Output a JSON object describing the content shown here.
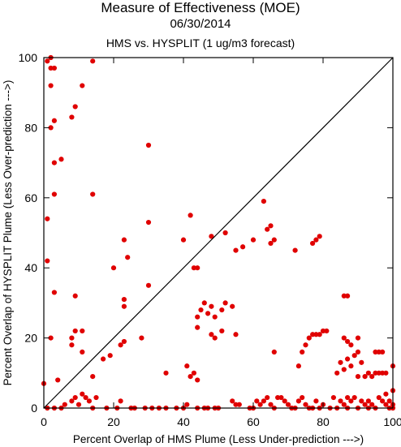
{
  "chart_data": {
    "type": "scatter",
    "title": "Measure of Effectiveness (MOE)",
    "subtitle": "06/30/2014",
    "subtitle2": "HMS vs. HYSPLIT  (1 ug/m3 forecast)",
    "xlabel": "Percent Overlap of HMS Plume (Less Under-prediction --->)",
    "ylabel": "Percent Overlap of HYSPLIT Plume (Less Over-prediction --->)",
    "xlim": [
      0,
      100
    ],
    "ylim": [
      0,
      100
    ],
    "x_ticks": [
      0,
      20,
      40,
      60,
      80,
      100
    ],
    "y_ticks": [
      0,
      20,
      40,
      60,
      80,
      100
    ],
    "grid": false,
    "reference_line": "diagonal y = x",
    "point_color": "#e00000",
    "points": [
      [
        1,
        99
      ],
      [
        2,
        97
      ],
      [
        2,
        100
      ],
      [
        3,
        97
      ],
      [
        2,
        92
      ],
      [
        11,
        92
      ],
      [
        14,
        99
      ],
      [
        8,
        83
      ],
      [
        9,
        86
      ],
      [
        3,
        82
      ],
      [
        2,
        80
      ],
      [
        30,
        75
      ],
      [
        3,
        70
      ],
      [
        5,
        71
      ],
      [
        1,
        54
      ],
      [
        3,
        61
      ],
      [
        14,
        61
      ],
      [
        42,
        55
      ],
      [
        63,
        59
      ],
      [
        65,
        52
      ],
      [
        64,
        51
      ],
      [
        66,
        48
      ],
      [
        23,
        48
      ],
      [
        24,
        43
      ],
      [
        20,
        40
      ],
      [
        30,
        53
      ],
      [
        40,
        48
      ],
      [
        48,
        49
      ],
      [
        52,
        50
      ],
      [
        1,
        42
      ],
      [
        43,
        40
      ],
      [
        44,
        40
      ],
      [
        55,
        45
      ],
      [
        57,
        46
      ],
      [
        60,
        48
      ],
      [
        72,
        45
      ],
      [
        77,
        47
      ],
      [
        78,
        48
      ],
      [
        79,
        49
      ],
      [
        65,
        47
      ],
      [
        3,
        33
      ],
      [
        9,
        32
      ],
      [
        30,
        35
      ],
      [
        23,
        31
      ],
      [
        23,
        29
      ],
      [
        44,
        26
      ],
      [
        45,
        28
      ],
      [
        46,
        30
      ],
      [
        47,
        27
      ],
      [
        48,
        29
      ],
      [
        49,
        26
      ],
      [
        51,
        28
      ],
      [
        52,
        30
      ],
      [
        54,
        29
      ],
      [
        44,
        23
      ],
      [
        48,
        21
      ],
      [
        49,
        20
      ],
      [
        51,
        22
      ],
      [
        55,
        21
      ],
      [
        73,
        12
      ],
      [
        74,
        16
      ],
      [
        75,
        18
      ],
      [
        76,
        20
      ],
      [
        77,
        21
      ],
      [
        78,
        21
      ],
      [
        79,
        21
      ],
      [
        80,
        22
      ],
      [
        81,
        22
      ],
      [
        86,
        32
      ],
      [
        87,
        32
      ],
      [
        86,
        20
      ],
      [
        87,
        19
      ],
      [
        88,
        18
      ],
      [
        90,
        20
      ],
      [
        87,
        14
      ],
      [
        88,
        12
      ],
      [
        89,
        15
      ],
      [
        90,
        16
      ],
      [
        91,
        13
      ],
      [
        85,
        13
      ],
      [
        86,
        11
      ],
      [
        84,
        10
      ],
      [
        90,
        9
      ],
      [
        92,
        9
      ],
      [
        93,
        10
      ],
      [
        94,
        9
      ],
      [
        95,
        10
      ],
      [
        96,
        10
      ],
      [
        97,
        10
      ],
      [
        98,
        10
      ],
      [
        95,
        16
      ],
      [
        96,
        16
      ],
      [
        97,
        16
      ],
      [
        100,
        12
      ],
      [
        100,
        5
      ],
      [
        98,
        4
      ],
      [
        99,
        2
      ],
      [
        2,
        20
      ],
      [
        4,
        8
      ],
      [
        8,
        18
      ],
      [
        8,
        20
      ],
      [
        9,
        22
      ],
      [
        11,
        22
      ],
      [
        11,
        16
      ],
      [
        14,
        9
      ],
      [
        17,
        14
      ],
      [
        19,
        15
      ],
      [
        22,
        18
      ],
      [
        23,
        19
      ],
      [
        28,
        20
      ],
      [
        35,
        10
      ],
      [
        41,
        12
      ],
      [
        42,
        9
      ],
      [
        43,
        10
      ],
      [
        44,
        8
      ],
      [
        66,
        16
      ],
      [
        0,
        7
      ],
      [
        1,
        0
      ],
      [
        3,
        0
      ],
      [
        5,
        0
      ],
      [
        6,
        1
      ],
      [
        8,
        2
      ],
      [
        9,
        3
      ],
      [
        10,
        1
      ],
      [
        11,
        4
      ],
      [
        12,
        3
      ],
      [
        13,
        2
      ],
      [
        14,
        0
      ],
      [
        15,
        3
      ],
      [
        18,
        0
      ],
      [
        21,
        0
      ],
      [
        22,
        2
      ],
      [
        25,
        0
      ],
      [
        26,
        0
      ],
      [
        29,
        0
      ],
      [
        31,
        0
      ],
      [
        33,
        0
      ],
      [
        35,
        0
      ],
      [
        38,
        0
      ],
      [
        40,
        0
      ],
      [
        41,
        1
      ],
      [
        44,
        0
      ],
      [
        46,
        0
      ],
      [
        47,
        0
      ],
      [
        49,
        0
      ],
      [
        50,
        0
      ],
      [
        54,
        2
      ],
      [
        55,
        1
      ],
      [
        56,
        1
      ],
      [
        59,
        0
      ],
      [
        60,
        0
      ],
      [
        61,
        2
      ],
      [
        62,
        1
      ],
      [
        63,
        2
      ],
      [
        64,
        3
      ],
      [
        65,
        1
      ],
      [
        66,
        0
      ],
      [
        67,
        3
      ],
      [
        68,
        3
      ],
      [
        69,
        2
      ],
      [
        70,
        1
      ],
      [
        71,
        0
      ],
      [
        72,
        0
      ],
      [
        73,
        2
      ],
      [
        74,
        3
      ],
      [
        75,
        1
      ],
      [
        76,
        0
      ],
      [
        77,
        0
      ],
      [
        78,
        2
      ],
      [
        79,
        0
      ],
      [
        80,
        1
      ],
      [
        82,
        0
      ],
      [
        83,
        3
      ],
      [
        84,
        0
      ],
      [
        85,
        2
      ],
      [
        86,
        1
      ],
      [
        87,
        0
      ],
      [
        88,
        2
      ],
      [
        89,
        3
      ],
      [
        90,
        0
      ],
      [
        91,
        2
      ],
      [
        92,
        1
      ],
      [
        93,
        2
      ],
      [
        94,
        1
      ],
      [
        95,
        0
      ],
      [
        96,
        3
      ],
      [
        97,
        2
      ],
      [
        98,
        1
      ],
      [
        99,
        0
      ],
      [
        100,
        1
      ],
      [
        100,
        0
      ],
      [
        93,
        0
      ],
      [
        87,
        3
      ]
    ]
  }
}
